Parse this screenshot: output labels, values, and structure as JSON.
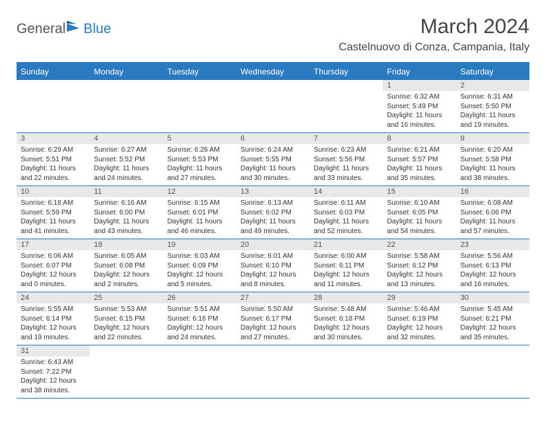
{
  "logo": {
    "text1": "General",
    "text2": "Blue"
  },
  "title": "March 2024",
  "location": "Castelnuovo di Conza, Campania, Italy",
  "colors": {
    "header_bg": "#2a7abf",
    "header_text": "#ffffff",
    "daynum_bg": "#e8e8e8",
    "daynum_text": "#555555",
    "body_text": "#333333",
    "border": "#2a7abf",
    "page_bg": "#ffffff",
    "title_text": "#444444"
  },
  "typography": {
    "month_title_fontsize": 30,
    "location_fontsize": 16,
    "weekday_fontsize": 12,
    "daynum_fontsize": 11,
    "dayinfo_fontsize": 10
  },
  "weekdays": [
    "Sunday",
    "Monday",
    "Tuesday",
    "Wednesday",
    "Thursday",
    "Friday",
    "Saturday"
  ],
  "grid": [
    [
      null,
      null,
      null,
      null,
      null,
      {
        "n": "1",
        "sr": "Sunrise: 6:32 AM",
        "ss": "Sunset: 5:49 PM",
        "dl": "Daylight: 11 hours and 16 minutes."
      },
      {
        "n": "2",
        "sr": "Sunrise: 6:31 AM",
        "ss": "Sunset: 5:50 PM",
        "dl": "Daylight: 11 hours and 19 minutes."
      }
    ],
    [
      {
        "n": "3",
        "sr": "Sunrise: 6:29 AM",
        "ss": "Sunset: 5:51 PM",
        "dl": "Daylight: 11 hours and 22 minutes."
      },
      {
        "n": "4",
        "sr": "Sunrise: 6:27 AM",
        "ss": "Sunset: 5:52 PM",
        "dl": "Daylight: 11 hours and 24 minutes."
      },
      {
        "n": "5",
        "sr": "Sunrise: 6:26 AM",
        "ss": "Sunset: 5:53 PM",
        "dl": "Daylight: 11 hours and 27 minutes."
      },
      {
        "n": "6",
        "sr": "Sunrise: 6:24 AM",
        "ss": "Sunset: 5:55 PM",
        "dl": "Daylight: 11 hours and 30 minutes."
      },
      {
        "n": "7",
        "sr": "Sunrise: 6:23 AM",
        "ss": "Sunset: 5:56 PM",
        "dl": "Daylight: 11 hours and 33 minutes."
      },
      {
        "n": "8",
        "sr": "Sunrise: 6:21 AM",
        "ss": "Sunset: 5:57 PM",
        "dl": "Daylight: 11 hours and 35 minutes."
      },
      {
        "n": "9",
        "sr": "Sunrise: 6:20 AM",
        "ss": "Sunset: 5:58 PM",
        "dl": "Daylight: 11 hours and 38 minutes."
      }
    ],
    [
      {
        "n": "10",
        "sr": "Sunrise: 6:18 AM",
        "ss": "Sunset: 5:59 PM",
        "dl": "Daylight: 11 hours and 41 minutes."
      },
      {
        "n": "11",
        "sr": "Sunrise: 6:16 AM",
        "ss": "Sunset: 6:00 PM",
        "dl": "Daylight: 11 hours and 43 minutes."
      },
      {
        "n": "12",
        "sr": "Sunrise: 6:15 AM",
        "ss": "Sunset: 6:01 PM",
        "dl": "Daylight: 11 hours and 46 minutes."
      },
      {
        "n": "13",
        "sr": "Sunrise: 6:13 AM",
        "ss": "Sunset: 6:02 PM",
        "dl": "Daylight: 11 hours and 49 minutes."
      },
      {
        "n": "14",
        "sr": "Sunrise: 6:11 AM",
        "ss": "Sunset: 6:03 PM",
        "dl": "Daylight: 11 hours and 52 minutes."
      },
      {
        "n": "15",
        "sr": "Sunrise: 6:10 AM",
        "ss": "Sunset: 6:05 PM",
        "dl": "Daylight: 11 hours and 54 minutes."
      },
      {
        "n": "16",
        "sr": "Sunrise: 6:08 AM",
        "ss": "Sunset: 6:06 PM",
        "dl": "Daylight: 11 hours and 57 minutes."
      }
    ],
    [
      {
        "n": "17",
        "sr": "Sunrise: 6:06 AM",
        "ss": "Sunset: 6:07 PM",
        "dl": "Daylight: 12 hours and 0 minutes."
      },
      {
        "n": "18",
        "sr": "Sunrise: 6:05 AM",
        "ss": "Sunset: 6:08 PM",
        "dl": "Daylight: 12 hours and 2 minutes."
      },
      {
        "n": "19",
        "sr": "Sunrise: 6:03 AM",
        "ss": "Sunset: 6:09 PM",
        "dl": "Daylight: 12 hours and 5 minutes."
      },
      {
        "n": "20",
        "sr": "Sunrise: 6:01 AM",
        "ss": "Sunset: 6:10 PM",
        "dl": "Daylight: 12 hours and 8 minutes."
      },
      {
        "n": "21",
        "sr": "Sunrise: 6:00 AM",
        "ss": "Sunset: 6:11 PM",
        "dl": "Daylight: 12 hours and 11 minutes."
      },
      {
        "n": "22",
        "sr": "Sunrise: 5:58 AM",
        "ss": "Sunset: 6:12 PM",
        "dl": "Daylight: 12 hours and 13 minutes."
      },
      {
        "n": "23",
        "sr": "Sunrise: 5:56 AM",
        "ss": "Sunset: 6:13 PM",
        "dl": "Daylight: 12 hours and 16 minutes."
      }
    ],
    [
      {
        "n": "24",
        "sr": "Sunrise: 5:55 AM",
        "ss": "Sunset: 6:14 PM",
        "dl": "Daylight: 12 hours and 19 minutes."
      },
      {
        "n": "25",
        "sr": "Sunrise: 5:53 AM",
        "ss": "Sunset: 6:15 PM",
        "dl": "Daylight: 12 hours and 22 minutes."
      },
      {
        "n": "26",
        "sr": "Sunrise: 5:51 AM",
        "ss": "Sunset: 6:16 PM",
        "dl": "Daylight: 12 hours and 24 minutes."
      },
      {
        "n": "27",
        "sr": "Sunrise: 5:50 AM",
        "ss": "Sunset: 6:17 PM",
        "dl": "Daylight: 12 hours and 27 minutes."
      },
      {
        "n": "28",
        "sr": "Sunrise: 5:48 AM",
        "ss": "Sunset: 6:18 PM",
        "dl": "Daylight: 12 hours and 30 minutes."
      },
      {
        "n": "29",
        "sr": "Sunrise: 5:46 AM",
        "ss": "Sunset: 6:19 PM",
        "dl": "Daylight: 12 hours and 32 minutes."
      },
      {
        "n": "30",
        "sr": "Sunrise: 5:45 AM",
        "ss": "Sunset: 6:21 PM",
        "dl": "Daylight: 12 hours and 35 minutes."
      }
    ],
    [
      {
        "n": "31",
        "sr": "Sunrise: 6:43 AM",
        "ss": "Sunset: 7:22 PM",
        "dl": "Daylight: 12 hours and 38 minutes."
      },
      null,
      null,
      null,
      null,
      null,
      null
    ]
  ]
}
